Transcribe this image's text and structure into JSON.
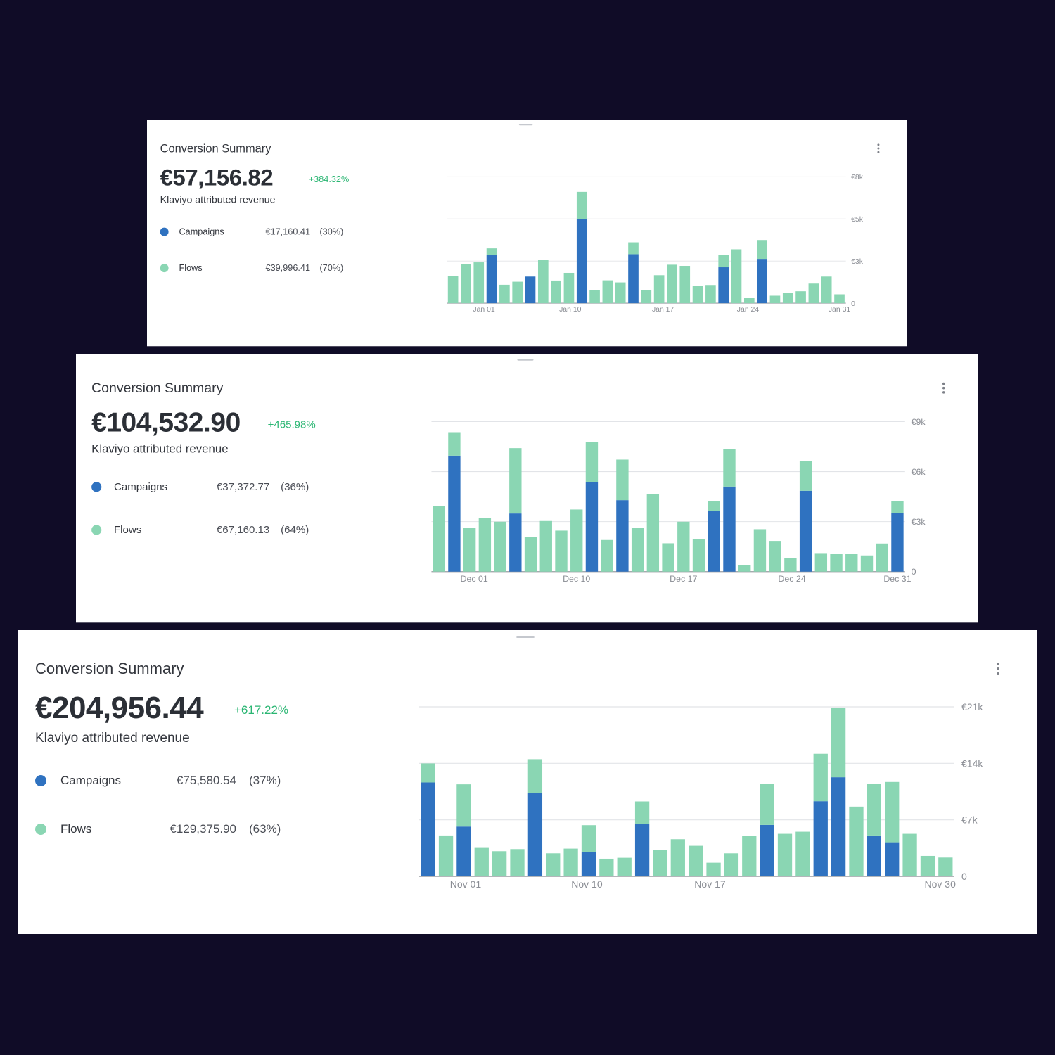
{
  "colors": {
    "campaigns": "#2f72c0",
    "flows": "#8ad6b3",
    "positive": "#2bb673"
  },
  "cards": [
    {
      "title": "Conversion Summary",
      "menu_icon": "kebab-icon",
      "total": "€57,156.82",
      "change": "+384.32%",
      "subtitle": "Klaviyo attributed revenue",
      "legend": [
        {
          "label": "Campaigns",
          "value": "€17,160.41",
          "share": "(30%)"
        },
        {
          "label": "Flows",
          "value": "€39,996.41",
          "share": "(70%)"
        }
      ]
    },
    {
      "title": "Conversion Summary",
      "menu_icon": "kebab-icon",
      "total": "€104,532.90",
      "change": "+465.98%",
      "subtitle": "Klaviyo attributed revenue",
      "legend": [
        {
          "label": "Campaigns",
          "value": "€37,372.77",
          "share": "(36%)"
        },
        {
          "label": "Flows",
          "value": "€67,160.13",
          "share": "(64%)"
        }
      ]
    },
    {
      "title": "Conversion Summary",
      "menu_icon": "kebab-icon",
      "total": "€204,956.44",
      "change": "+617.22%",
      "subtitle": "Klaviyo attributed revenue",
      "legend": [
        {
          "label": "Campaigns",
          "value": "€75,580.54",
          "share": "(37%)"
        },
        {
          "label": "Flows",
          "value": "€129,375.90",
          "share": "(63%)"
        }
      ]
    }
  ],
  "chart_data": [
    {
      "type": "bar",
      "stacked": true,
      "title": "",
      "xlabel": "",
      "ylabel": "",
      "ylim": [
        0,
        8000
      ],
      "yticks": [
        {
          "value": 0,
          "label": "0"
        },
        {
          "value": 2667,
          "label": "€3k"
        },
        {
          "value": 5333,
          "label": "€5k"
        },
        {
          "value": 8000,
          "label": "€8k"
        }
      ],
      "xticks": [
        {
          "at": 2.4,
          "label": "Jan 01"
        },
        {
          "at": 9.1,
          "label": "Jan 10"
        },
        {
          "at": 16.3,
          "label": "Jan 17"
        },
        {
          "at": 22.9,
          "label": "Jan 24"
        },
        {
          "at": 30,
          "label": "Jan 31"
        }
      ],
      "series": [
        {
          "name": "Campaigns",
          "values": [
            0,
            0,
            0,
            3070,
            0,
            0,
            1683,
            0,
            0,
            0,
            5314,
            0,
            0,
            0,
            3100,
            0,
            0,
            0,
            0,
            0,
            0,
            2273,
            0,
            0,
            2804,
            0,
            0,
            0,
            0,
            0,
            0
          ]
        },
        {
          "name": "Flows",
          "values": [
            1697,
            2480,
            2583,
            399,
            1166,
            1358,
            0,
            2731,
            1432,
            1919,
            1727,
            827,
            1446,
            1314,
            752,
            812,
            1771,
            2435,
            2362,
            1107,
            1151,
            797,
            3410,
            325,
            1196,
            472,
            649,
            753,
            1240,
            1683,
            561
          ]
        }
      ]
    },
    {
      "type": "bar",
      "stacked": true,
      "title": "",
      "xlabel": "",
      "ylabel": "",
      "ylim": [
        0,
        9000
      ],
      "yticks": [
        {
          "value": 0,
          "label": "0"
        },
        {
          "value": 3000,
          "label": "€3k"
        },
        {
          "value": 6000,
          "label": "€6k"
        },
        {
          "value": 9000,
          "label": "€9k"
        }
      ],
      "xticks": [
        {
          "at": 2.3,
          "label": "Dec 01"
        },
        {
          "at": 9,
          "label": "Dec 10"
        },
        {
          "at": 16,
          "label": "Dec 17"
        },
        {
          "at": 23.1,
          "label": "Dec 24"
        },
        {
          "at": 30,
          "label": "Dec 31"
        }
      ],
      "series": [
        {
          "name": "Campaigns",
          "values": [
            0,
            6960,
            0,
            0,
            0,
            3487,
            0,
            0,
            0,
            0,
            5371,
            0,
            4288,
            0,
            0,
            0,
            0,
            0,
            3642,
            5104,
            0,
            0,
            0,
            0,
            4851,
            0,
            0,
            0,
            0,
            0,
            3529
          ]
        },
        {
          "name": "Flows",
          "values": [
            3937,
            1406,
            2643,
            3206,
            2995,
            3923,
            2081,
            3037,
            2461,
            3726,
            2404,
            1898,
            2433,
            2643,
            4640,
            1701,
            2995,
            1940,
            590,
            2235,
            380,
            2545,
            1842,
            830,
            1771,
            1111,
            1055,
            1055,
            970,
            1687,
            703
          ]
        }
      ]
    },
    {
      "type": "bar",
      "stacked": true,
      "title": "",
      "xlabel": "",
      "ylabel": "",
      "ylim": [
        0,
        21000
      ],
      "yticks": [
        {
          "value": 0,
          "label": "0"
        },
        {
          "value": 7000,
          "label": "€7k"
        },
        {
          "value": 14000,
          "label": "€14k"
        },
        {
          "value": 21000,
          "label": "€21k"
        }
      ],
      "xticks": [
        {
          "at": 2.1,
          "label": "Nov 01"
        },
        {
          "at": 8.9,
          "label": "Nov 10"
        },
        {
          "at": 15.8,
          "label": "Nov 17"
        },
        {
          "at": 28.7,
          "label": "Nov 30"
        }
      ],
      "series": [
        {
          "name": "Campaigns",
          "values": [
            11636,
            0,
            6167,
            0,
            0,
            0,
            10327,
            0,
            0,
            2996,
            0,
            0,
            6516,
            0,
            0,
            0,
            0,
            0,
            0,
            6371,
            0,
            0,
            9309,
            12276,
            0,
            5062,
            4218,
            0,
            0,
            0
          ]
        },
        {
          "name": "Flows",
          "values": [
            2356,
            5062,
            5236,
            3607,
            3113,
            3374,
            4189,
            2851,
            3433,
            3346,
            2182,
            2298,
            2764,
            3229,
            4596,
            3782,
            1687,
            2851,
            5003,
            5090,
            5265,
            5527,
            5876,
            8640,
            8640,
            6429,
            7476,
            5265,
            2531,
            2327
          ]
        }
      ]
    }
  ]
}
